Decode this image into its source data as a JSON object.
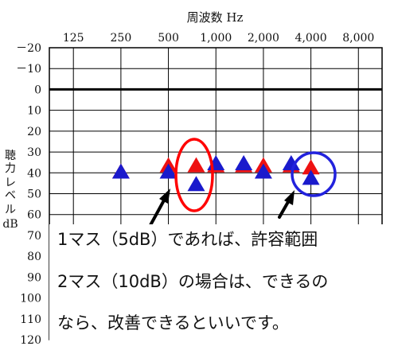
{
  "chart_data": {
    "type": "scatter",
    "title": "",
    "xlabel": "周波数 Hz",
    "ylabel": "聴力レベル dB",
    "ylabel_chars": [
      "聴",
      "力",
      "レ",
      "ベ",
      "ル",
      "dB"
    ],
    "x_scale": "log",
    "x_ticks": [
      {
        "value": 125,
        "label": "125"
      },
      {
        "value": 250,
        "label": "250"
      },
      {
        "value": 500,
        "label": "500"
      },
      {
        "value": 1000,
        "label": "1,000"
      },
      {
        "value": 2000,
        "label": "2,000"
      },
      {
        "value": 4000,
        "label": "4,000"
      },
      {
        "value": 8000,
        "label": "8,000"
      }
    ],
    "y_ticks": [
      {
        "value": -20,
        "label": "－20"
      },
      {
        "value": -10,
        "label": "－10"
      },
      {
        "value": 0,
        "label": "0"
      },
      {
        "value": 10,
        "label": "10"
      },
      {
        "value": 20,
        "label": "20"
      },
      {
        "value": 30,
        "label": "30"
      },
      {
        "value": 40,
        "label": "40"
      },
      {
        "value": 50,
        "label": "50"
      },
      {
        "value": 60,
        "label": "60"
      },
      {
        "value": 70,
        "label": "70"
      },
      {
        "value": 80,
        "label": "80"
      },
      {
        "value": 90,
        "label": "90"
      },
      {
        "value": 100,
        "label": "100"
      },
      {
        "value": 110,
        "label": "110"
      },
      {
        "value": 120,
        "label": "120"
      }
    ],
    "ylim": [
      -20,
      120
    ],
    "y_inverted": true,
    "xlim": [
      88,
      11300
    ],
    "series": [
      {
        "color": "#ee1111",
        "points": [
          {
            "x": 250,
            "y": 40
          },
          {
            "x": 500,
            "y": 37
          },
          {
            "x": 750,
            "y": 37
          },
          {
            "x": 1000,
            "y": 37
          },
          {
            "x": 1500,
            "y": 37
          },
          {
            "x": 2000,
            "y": 37
          },
          {
            "x": 3000,
            "y": 37
          },
          {
            "x": 4000,
            "y": 38
          }
        ]
      },
      {
        "color": "#1a1acc",
        "points": [
          {
            "x": 250,
            "y": 40
          },
          {
            "x": 500,
            "y": 40
          },
          {
            "x": 750,
            "y": 46
          },
          {
            "x": 1000,
            "y": 36
          },
          {
            "x": 1500,
            "y": 36
          },
          {
            "x": 2000,
            "y": 40
          },
          {
            "x": 3000,
            "y": 36
          },
          {
            "x": 4000,
            "y": 43
          }
        ]
      }
    ],
    "annotations": [
      "1マス（5dB）であれば、許容範囲",
      "2マス（10dB）の場合は、できるの",
      "なら、改善できるといいです。"
    ],
    "grid": true
  }
}
